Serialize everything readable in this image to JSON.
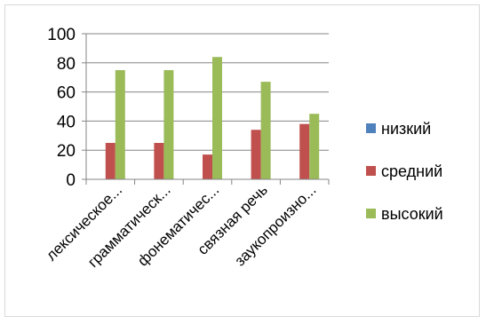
{
  "chart_data": {
    "type": "bar",
    "categories": [
      "лексическое...",
      "грамматическ...",
      "фонематичес...",
      "связная речь",
      "заукопроизно..."
    ],
    "series": [
      {
        "name": "низкий",
        "color": "#4F81BD",
        "values": [
          0,
          0,
          0,
          0,
          0
        ]
      },
      {
        "name": "средний",
        "color": "#C0504D",
        "values": [
          25,
          25,
          17,
          34,
          38
        ]
      },
      {
        "name": "высокий",
        "color": "#9BBB59",
        "values": [
          75,
          75,
          84,
          67,
          45
        ]
      }
    ],
    "ylim": [
      0,
      100
    ],
    "yticks": [
      0,
      20,
      40,
      60,
      80,
      100
    ],
    "grid": true,
    "legend_position": "right",
    "title": "",
    "xlabel": "",
    "ylabel": ""
  }
}
